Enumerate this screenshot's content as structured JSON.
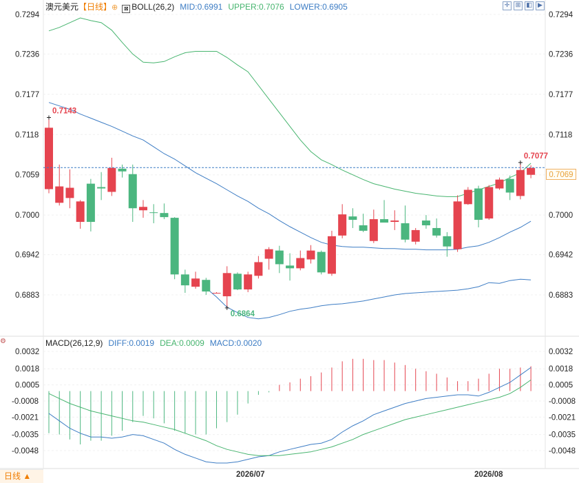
{
  "header": {
    "symbol": "澳元美元",
    "period_tag": "【日线】",
    "period_icon": "⊕",
    "boll_icon": "boll-chart-icon",
    "boll_name": "BOLL(26,2)",
    "boll_mid": "MID:0.6991",
    "boll_upper": "UPPER:0.7076",
    "boll_lower": "LOWER:0.6905"
  },
  "macd_header": {
    "name": "MACD(26,12,9)",
    "diff": "DIFF:0.0019",
    "dea": "DEA:0.0009",
    "macd": "MACD:0.0020"
  },
  "toolbar": [
    {
      "name": "crosshair-icon",
      "glyph": "✛"
    },
    {
      "name": "zoom-icon",
      "glyph": "⊞"
    },
    {
      "name": "step-back-icon",
      "glyph": "◧"
    },
    {
      "name": "step-forward-icon",
      "glyph": "▶"
    }
  ],
  "colors": {
    "up": "#e5444f",
    "down": "#4bb67f",
    "mid": "#3c7cc4",
    "upper": "#46b46e",
    "lower": "#3c7cc4",
    "diff": "#3c7cc4",
    "dea": "#46b46e"
  },
  "current_price": "0.7069",
  "footer": {
    "period_label": "日线 ▲",
    "dates": [
      "2026/07",
      "2026/08"
    ]
  },
  "chart_data": [
    {
      "type": "candlestick",
      "ylim": [
        0.6826,
        0.7294
      ],
      "y_ticks": [
        "0.7294",
        "0.7236",
        "0.7177",
        "0.7118",
        "0.7059",
        "0.7000",
        "0.6942",
        "0.6883"
      ],
      "annotations": {
        "high": "0.7143",
        "low": "0.6864",
        "last_high": "0.7077"
      },
      "candles": [
        {
          "o": 0.7038,
          "h": 0.7143,
          "l": 0.7032,
          "c": 0.7128
        },
        {
          "o": 0.7018,
          "h": 0.7074,
          "l": 0.7014,
          "c": 0.7042
        },
        {
          "o": 0.7025,
          "h": 0.7067,
          "l": 0.701,
          "c": 0.704
        },
        {
          "o": 0.699,
          "h": 0.7022,
          "l": 0.698,
          "c": 0.702
        },
        {
          "o": 0.7046,
          "h": 0.7053,
          "l": 0.6976,
          "c": 0.699
        },
        {
          "o": 0.7041,
          "h": 0.7063,
          "l": 0.7022,
          "c": 0.7039
        },
        {
          "o": 0.7034,
          "h": 0.7084,
          "l": 0.7028,
          "c": 0.7069
        },
        {
          "o": 0.7068,
          "h": 0.7074,
          "l": 0.7055,
          "c": 0.7064
        },
        {
          "o": 0.706,
          "h": 0.7074,
          "l": 0.699,
          "c": 0.701
        },
        {
          "o": 0.7007,
          "h": 0.7022,
          "l": 0.6996,
          "c": 0.7012
        },
        {
          "o": 0.7004,
          "h": 0.7016,
          "l": 0.6988,
          "c": 0.7003
        },
        {
          "o": 0.7003,
          "h": 0.7017,
          "l": 0.6994,
          "c": 0.6997
        },
        {
          "o": 0.6996,
          "h": 0.6997,
          "l": 0.6906,
          "c": 0.6913
        },
        {
          "o": 0.6913,
          "h": 0.692,
          "l": 0.6886,
          "c": 0.6897
        },
        {
          "o": 0.6895,
          "h": 0.6917,
          "l": 0.6892,
          "c": 0.6907
        },
        {
          "o": 0.6905,
          "h": 0.6908,
          "l": 0.6883,
          "c": 0.6888
        },
        {
          "o": 0.6886,
          "h": 0.6887,
          "l": 0.6885,
          "c": 0.6886
        },
        {
          "o": 0.6881,
          "h": 0.6925,
          "l": 0.6864,
          "c": 0.6915
        },
        {
          "o": 0.6914,
          "h": 0.6916,
          "l": 0.689,
          "c": 0.6891
        },
        {
          "o": 0.6891,
          "h": 0.6917,
          "l": 0.6887,
          "c": 0.6913
        },
        {
          "o": 0.6911,
          "h": 0.694,
          "l": 0.6907,
          "c": 0.6931
        },
        {
          "o": 0.6936,
          "h": 0.6953,
          "l": 0.692,
          "c": 0.695
        },
        {
          "o": 0.6948,
          "h": 0.6955,
          "l": 0.6915,
          "c": 0.6928
        },
        {
          "o": 0.6926,
          "h": 0.6944,
          "l": 0.6904,
          "c": 0.6922
        },
        {
          "o": 0.6922,
          "h": 0.6948,
          "l": 0.6919,
          "c": 0.6937
        },
        {
          "o": 0.6935,
          "h": 0.6956,
          "l": 0.6929,
          "c": 0.6948
        },
        {
          "o": 0.6946,
          "h": 0.6948,
          "l": 0.6913,
          "c": 0.6916
        },
        {
          "o": 0.6914,
          "h": 0.6977,
          "l": 0.6911,
          "c": 0.6969
        },
        {
          "o": 0.697,
          "h": 0.7016,
          "l": 0.6966,
          "c": 0.7001
        },
        {
          "o": 0.6998,
          "h": 0.701,
          "l": 0.6981,
          "c": 0.6993
        },
        {
          "o": 0.6985,
          "h": 0.7002,
          "l": 0.6975,
          "c": 0.6977
        },
        {
          "o": 0.6962,
          "h": 0.7008,
          "l": 0.6959,
          "c": 0.6994
        },
        {
          "o": 0.6994,
          "h": 0.7022,
          "l": 0.699,
          "c": 0.6989
        },
        {
          "o": 0.699,
          "h": 0.7007,
          "l": 0.6978,
          "c": 0.6992
        },
        {
          "o": 0.6988,
          "h": 0.7014,
          "l": 0.696,
          "c": 0.6964
        },
        {
          "o": 0.6961,
          "h": 0.6981,
          "l": 0.6957,
          "c": 0.6978
        },
        {
          "o": 0.6992,
          "h": 0.7,
          "l": 0.698,
          "c": 0.6985
        },
        {
          "o": 0.6981,
          "h": 0.6995,
          "l": 0.6967,
          "c": 0.697
        },
        {
          "o": 0.6969,
          "h": 0.6975,
          "l": 0.6939,
          "c": 0.6954
        },
        {
          "o": 0.695,
          "h": 0.7029,
          "l": 0.6946,
          "c": 0.702
        },
        {
          "o": 0.7016,
          "h": 0.7041,
          "l": 0.7015,
          "c": 0.7037
        },
        {
          "o": 0.7039,
          "h": 0.7043,
          "l": 0.6982,
          "c": 0.6993
        },
        {
          "o": 0.6995,
          "h": 0.7044,
          "l": 0.6993,
          "c": 0.7041
        },
        {
          "o": 0.7039,
          "h": 0.7055,
          "l": 0.7037,
          "c": 0.7052
        },
        {
          "o": 0.7053,
          "h": 0.7058,
          "l": 0.7022,
          "c": 0.7033
        },
        {
          "o": 0.7028,
          "h": 0.7077,
          "l": 0.7023,
          "c": 0.7066
        },
        {
          "o": 0.7059,
          "h": 0.7073,
          "l": 0.7054,
          "c": 0.7069
        }
      ],
      "overlay": {
        "upper": [
          0.727,
          0.7275,
          0.7282,
          0.7289,
          0.7285,
          0.7282,
          0.7271,
          0.7253,
          0.7236,
          0.7224,
          0.7223,
          0.7225,
          0.7232,
          0.7238,
          0.724,
          0.724,
          0.724,
          0.7231,
          0.722,
          0.721,
          0.719,
          0.717,
          0.715,
          0.713,
          0.711,
          0.7093,
          0.7081,
          0.7074,
          0.7066,
          0.7059,
          0.7052,
          0.7046,
          0.7042,
          0.7038,
          0.7035,
          0.7032,
          0.703,
          0.7028,
          0.7027,
          0.7027,
          0.7032,
          0.7037,
          0.7042,
          0.7047,
          0.7055,
          0.7062,
          0.7076
        ],
        "mid": [
          0.7165,
          0.716,
          0.7155,
          0.7148,
          0.7142,
          0.7136,
          0.713,
          0.7123,
          0.7116,
          0.711,
          0.71,
          0.709,
          0.7082,
          0.7072,
          0.7062,
          0.7054,
          0.7046,
          0.7037,
          0.7028,
          0.702,
          0.701,
          0.7002,
          0.6992,
          0.6983,
          0.6975,
          0.6967,
          0.696,
          0.6956,
          0.6954,
          0.6953,
          0.6953,
          0.6952,
          0.6951,
          0.6951,
          0.695,
          0.695,
          0.6949,
          0.6949,
          0.6949,
          0.695,
          0.6953,
          0.6955,
          0.696,
          0.6967,
          0.6975,
          0.6982,
          0.6991
        ],
        "lower": [
          null,
          null,
          null,
          null,
          null,
          null,
          null,
          null,
          null,
          null,
          null,
          null,
          null,
          null,
          null,
          0.6893,
          0.688,
          0.6865,
          0.6857,
          0.685,
          0.6848,
          0.685,
          0.6854,
          0.6859,
          0.6862,
          0.6864,
          0.6867,
          0.6869,
          0.687,
          0.6872,
          0.6874,
          0.6877,
          0.688,
          0.6883,
          0.6885,
          0.6886,
          0.6887,
          0.6888,
          0.6889,
          0.689,
          0.6892,
          0.6895,
          0.6901,
          0.69,
          0.6904,
          0.6906,
          0.6905
        ]
      }
    },
    {
      "type": "macd",
      "ylim": [
        -0.0057,
        0.0032
      ],
      "y_ticks": [
        "0.0032",
        "0.0018",
        "0.0005",
        "-0.0008",
        "-0.0021",
        "-0.0035",
        "-0.0048"
      ],
      "diff": [
        -0.0018,
        -0.0024,
        -0.003,
        -0.0034,
        -0.0037,
        -0.0037,
        -0.0038,
        -0.0037,
        -0.0035,
        -0.0036,
        -0.0039,
        -0.0042,
        -0.0047,
        -0.0051,
        -0.0054,
        -0.0057,
        -0.0058,
        -0.0058,
        -0.0057,
        -0.0055,
        -0.0053,
        -0.0052,
        -0.0049,
        -0.0047,
        -0.0045,
        -0.0043,
        -0.0042,
        -0.0039,
        -0.0033,
        -0.0028,
        -0.0024,
        -0.0019,
        -0.0016,
        -0.0013,
        -0.001,
        -0.0008,
        -0.0006,
        -0.0005,
        -0.0004,
        -0.0003,
        -0.0003,
        -0.0004,
        -0.0001,
        0.0003,
        0.0007,
        0.0013,
        0.0019
      ],
      "dea": [
        -0.0002,
        -0.0006,
        -0.001,
        -0.0013,
        -0.0016,
        -0.0018,
        -0.002,
        -0.0022,
        -0.0024,
        -0.0025,
        -0.0027,
        -0.0029,
        -0.0031,
        -0.0034,
        -0.0037,
        -0.004,
        -0.0044,
        -0.0047,
        -0.0049,
        -0.0051,
        -0.0052,
        -0.0052,
        -0.0052,
        -0.0051,
        -0.005,
        -0.0049,
        -0.0047,
        -0.0045,
        -0.0042,
        -0.0039,
        -0.0035,
        -0.0032,
        -0.0029,
        -0.0026,
        -0.0023,
        -0.0021,
        -0.0019,
        -0.0017,
        -0.0015,
        -0.0013,
        -0.0011,
        -0.0009,
        -0.0007,
        -0.0005,
        -0.0002,
        0.0003,
        0.0009
      ],
      "histogram": [
        -0.0034,
        -0.0035,
        -0.0039,
        -0.0043,
        -0.004,
        -0.004,
        -0.0036,
        -0.0032,
        -0.0025,
        -0.002,
        -0.0022,
        -0.0026,
        -0.0032,
        -0.0034,
        -0.0035,
        -0.0035,
        -0.003,
        -0.0025,
        -0.0019,
        -0.001,
        -0.0003,
        -0.0001,
        0.0005,
        0.0007,
        0.001,
        0.0012,
        0.0015,
        0.0019,
        0.0024,
        0.0026,
        0.0026,
        0.0025,
        0.0025,
        0.0023,
        0.0021,
        0.0018,
        0.0016,
        0.0014,
        0.0011,
        0.0008,
        0.0008,
        0.001,
        0.0014,
        0.0018,
        0.0018,
        0.0019,
        0.002
      ]
    }
  ]
}
